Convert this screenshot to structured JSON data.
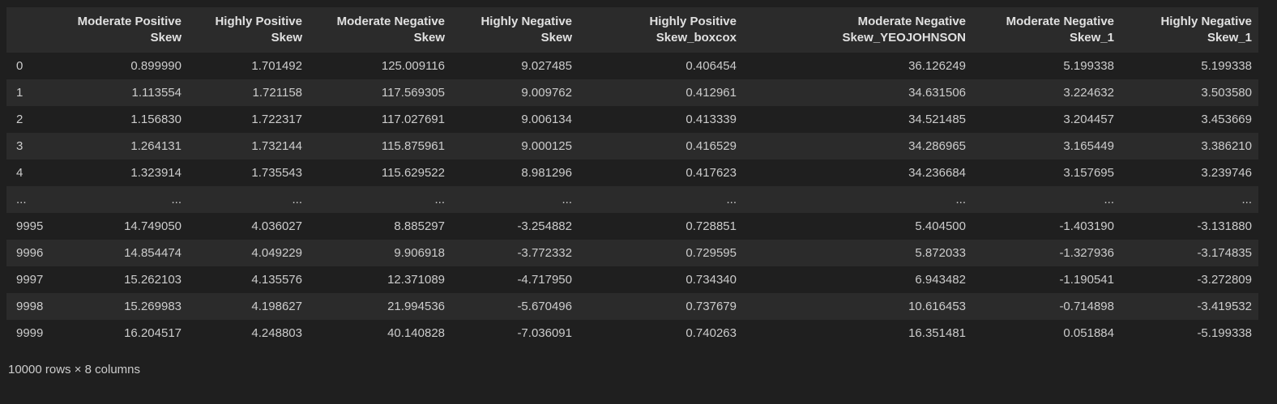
{
  "table": {
    "columns": [
      "",
      "Moderate Positive Skew",
      "Highly Positive Skew",
      "Moderate Negative Skew",
      "Highly Negative Skew",
      "Highly Positive Skew_boxcox",
      "Moderate Negative Skew_YEOJOHNSON",
      "Moderate Negative Skew_1",
      "Highly Negative Skew_1"
    ],
    "rows": [
      [
        "0",
        "0.899990",
        "1.701492",
        "125.009116",
        "9.027485",
        "0.406454",
        "36.126249",
        "5.199338",
        "5.199338"
      ],
      [
        "1",
        "1.113554",
        "1.721158",
        "117.569305",
        "9.009762",
        "0.412961",
        "34.631506",
        "3.224632",
        "3.503580"
      ],
      [
        "2",
        "1.156830",
        "1.722317",
        "117.027691",
        "9.006134",
        "0.413339",
        "34.521485",
        "3.204457",
        "3.453669"
      ],
      [
        "3",
        "1.264131",
        "1.732144",
        "115.875961",
        "9.000125",
        "0.416529",
        "34.286965",
        "3.165449",
        "3.386210"
      ],
      [
        "4",
        "1.323914",
        "1.735543",
        "115.629522",
        "8.981296",
        "0.417623",
        "34.236684",
        "3.157695",
        "3.239746"
      ],
      [
        "...",
        "...",
        "...",
        "...",
        "...",
        "...",
        "...",
        "...",
        "..."
      ],
      [
        "9995",
        "14.749050",
        "4.036027",
        "8.885297",
        "-3.254882",
        "0.728851",
        "5.404500",
        "-1.403190",
        "-3.131880"
      ],
      [
        "9996",
        "14.854474",
        "4.049229",
        "9.906918",
        "-3.772332",
        "0.729595",
        "5.872033",
        "-1.327936",
        "-3.174835"
      ],
      [
        "9997",
        "15.262103",
        "4.135576",
        "12.371089",
        "-4.717950",
        "0.734340",
        "6.943482",
        "-1.190541",
        "-3.272809"
      ],
      [
        "9998",
        "15.269983",
        "4.198627",
        "21.994536",
        "-5.670496",
        "0.737679",
        "10.616453",
        "-0.714898",
        "-3.419532"
      ],
      [
        "9999",
        "16.204517",
        "4.248803",
        "40.140828",
        "-7.036091",
        "0.740263",
        "16.351481",
        "0.051884",
        "-5.199338"
      ]
    ]
  },
  "footer": {
    "summary": "10000 rows × 8 columns"
  }
}
